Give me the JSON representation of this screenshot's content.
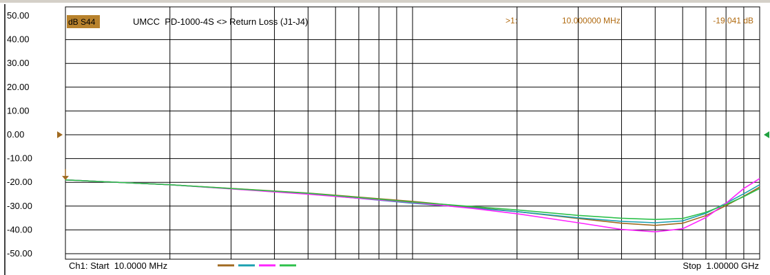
{
  "header": {
    "measurement_badge": "dB S44",
    "trace_title": "UMCC  PD-1000-4S <> Return Loss (J1-J4)",
    "marker_label": ">1:",
    "marker_frequency": "10.000000 MHz",
    "marker_value": "-19.041 dB"
  },
  "footer": {
    "start_label": "Ch1: Start  10.0000 MHz",
    "stop_label": "Stop  1.00000 GHz"
  },
  "colors": {
    "badge": "#b8822c",
    "marker_text": "#b06a10",
    "grid": "#000000",
    "trace_1": "#a06a20",
    "trace_2": "#1aa0b0",
    "trace_3": "#ff22ff",
    "trace_4": "#2cc04a",
    "right_reference": "#20a040"
  },
  "chart_data": {
    "type": "line",
    "title": "UMCC  PD-1000-4S <> Return Loss (J1-J4)",
    "xlabel": "",
    "ylabel": "",
    "x_scale": "log",
    "x_unit": "MHz",
    "xlim": [
      10,
      1000
    ],
    "ylim": [
      -50,
      50
    ],
    "y_ticks": [
      50,
      40,
      30,
      20,
      10,
      0,
      -10,
      -20,
      -30,
      -40,
      -50
    ],
    "y_tick_labels": [
      "50.00",
      "40.00",
      "30.00",
      "20.00",
      "10.00",
      "0.00",
      "-10.00",
      "-20.00",
      "-30.00",
      "-40.00",
      "-50.00"
    ],
    "grid": true,
    "reference_level": 0,
    "marker": {
      "x": 10,
      "y": -19.041
    },
    "series": [
      {
        "color": "#a06a20",
        "x": [
          10,
          20,
          50,
          100,
          150,
          200,
          300,
          400,
          500,
          600,
          700,
          800,
          900,
          1000
        ],
        "y": [
          -19.0,
          -21.0,
          -24.5,
          -28.0,
          -30.5,
          -32.3,
          -35.2,
          -37.2,
          -38.1,
          -37.2,
          -34.0,
          -29.8,
          -25.8,
          -22.0
        ]
      },
      {
        "color": "#1aa0b0",
        "x": [
          10,
          20,
          50,
          100,
          150,
          200,
          300,
          400,
          500,
          600,
          700,
          800,
          900,
          1000
        ],
        "y": [
          -19.0,
          -21.0,
          -24.8,
          -28.8,
          -30.8,
          -32.3,
          -34.9,
          -36.4,
          -37.0,
          -36.2,
          -33.0,
          -28.8,
          -24.8,
          -21.0
        ]
      },
      {
        "color": "#ff22ff",
        "x": [
          10,
          20,
          50,
          100,
          150,
          200,
          300,
          400,
          500,
          600,
          700,
          800,
          900,
          1000
        ],
        "y": [
          -19.0,
          -21.0,
          -25.0,
          -28.5,
          -31.0,
          -33.2,
          -37.0,
          -39.8,
          -40.8,
          -39.5,
          -34.8,
          -28.8,
          -22.6,
          -18.4
        ]
      },
      {
        "color": "#2cc04a",
        "x": [
          10,
          20,
          50,
          100,
          150,
          200,
          300,
          400,
          500,
          600,
          700,
          800,
          900,
          1000
        ],
        "y": [
          -19.0,
          -21.0,
          -24.6,
          -28.3,
          -30.2,
          -31.6,
          -33.9,
          -35.1,
          -35.6,
          -35.2,
          -32.6,
          -29.3,
          -26.0,
          -22.6
        ]
      }
    ]
  }
}
